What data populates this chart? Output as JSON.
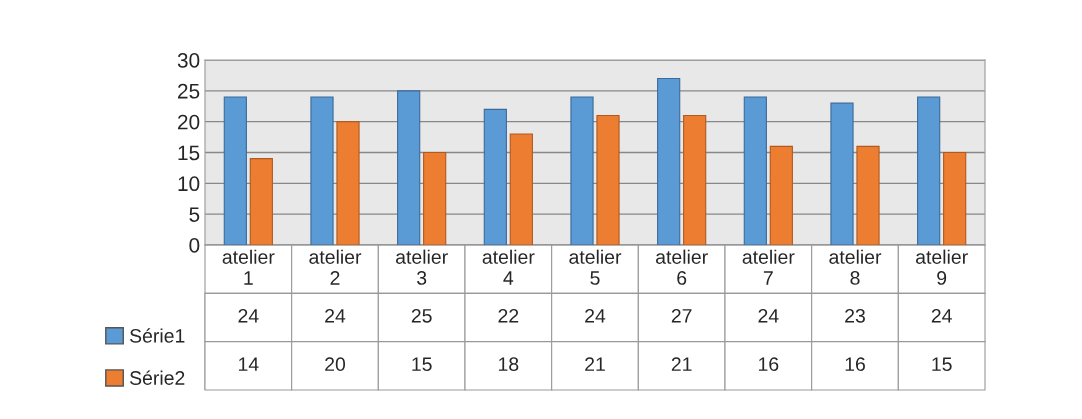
{
  "chart_data": {
    "type": "bar",
    "categories": [
      "atelier\n1",
      "atelier\n2",
      "atelier\n3",
      "atelier\n4",
      "atelier\n5",
      "atelier\n6",
      "atelier\n7",
      "atelier\n8",
      "atelier\n9"
    ],
    "series": [
      {
        "name": "Série1",
        "color": "#5b9bd5",
        "values": [
          24,
          24,
          25,
          22,
          24,
          27,
          24,
          23,
          24
        ]
      },
      {
        "name": "Série2",
        "color": "#ed7d31",
        "values": [
          14,
          20,
          15,
          18,
          21,
          21,
          16,
          16,
          15
        ]
      }
    ],
    "ylim": [
      0,
      30
    ],
    "yticks": [
      0,
      5,
      10,
      15,
      20,
      25,
      30
    ],
    "grid": "y",
    "legend": "bottom left",
    "data_labels": true
  }
}
